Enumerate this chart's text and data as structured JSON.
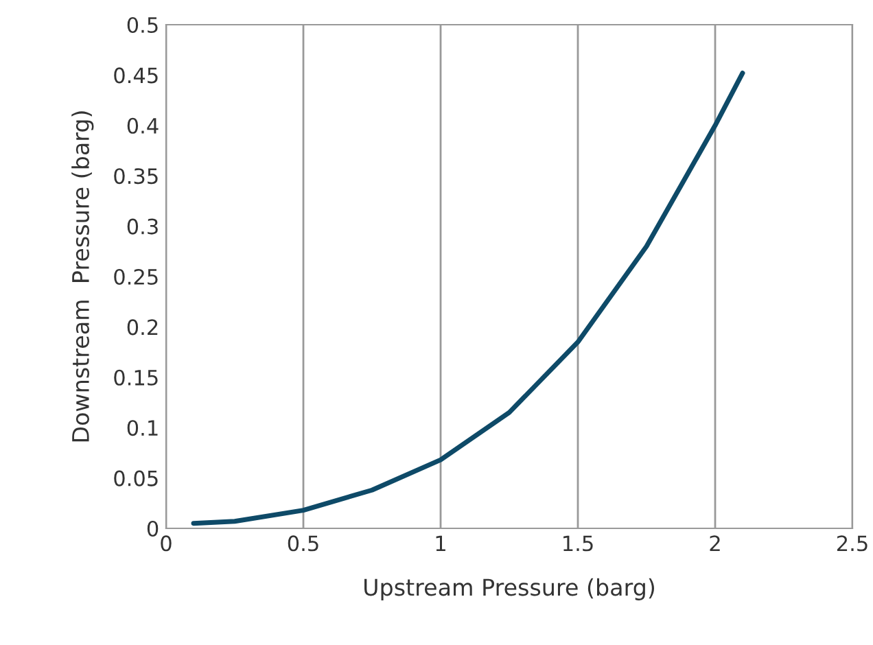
{
  "chart_data": {
    "type": "line",
    "xlabel": "Upstream Pressure (barg)",
    "ylabel": "Downstream  Pressure (barg)",
    "x": [
      0.1,
      0.25,
      0.5,
      0.75,
      1.0,
      1.25,
      1.5,
      1.75,
      2.0,
      2.1
    ],
    "series": [
      {
        "color": "#0e4a68",
        "values": [
          0.005,
          0.007,
          0.018,
          0.038,
          0.068,
          0.115,
          0.185,
          0.28,
          0.4,
          0.452
        ]
      }
    ],
    "xlim": [
      0,
      2.5
    ],
    "xticks": [
      0,
      0.5,
      1,
      1.5,
      2,
      2.5
    ],
    "ylim": [
      0,
      0.5
    ],
    "yticks": [
      0,
      0.05,
      0.1,
      0.15,
      0.2,
      0.25,
      0.3,
      0.35,
      0.4,
      0.45,
      0.5
    ],
    "grid": "x",
    "marker": "none",
    "line_style": "solid"
  }
}
